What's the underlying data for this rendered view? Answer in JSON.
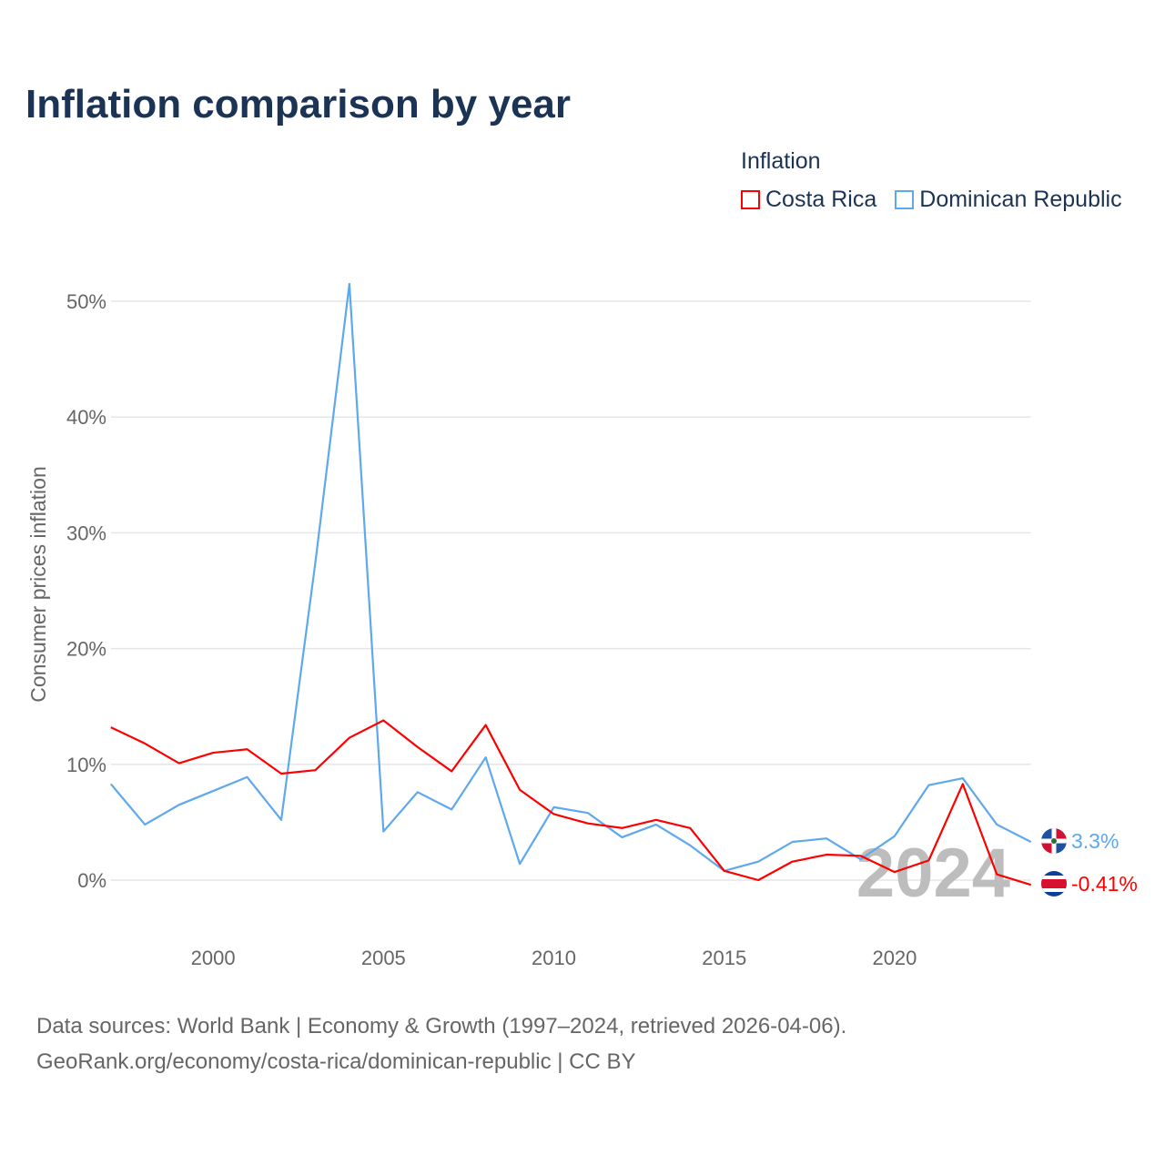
{
  "title": "Inflation comparison by year",
  "legend": {
    "title": "Inflation",
    "items": [
      {
        "label": "Costa Rica",
        "color": "#ff0000"
      },
      {
        "label": "Dominican Republic",
        "color": "#5ea8ee"
      }
    ]
  },
  "source": {
    "line1": "Data sources: World Bank | Economy & Growth (1997–2024, retrieved 2026-04-06).",
    "line2": "GeoRank.org/economy/costa-rica/dominican-republic | CC BY"
  },
  "chart_data": {
    "type": "line",
    "title": "Inflation comparison by year",
    "ylabel": "Consumer prices inflation",
    "xlabel": "",
    "xlim": [
      1997,
      2024
    ],
    "ylim": [
      -6,
      52
    ],
    "x_ticks": [
      2000,
      2005,
      2010,
      2015,
      2020
    ],
    "y_ticks": [
      0,
      10,
      20,
      30,
      40,
      50
    ],
    "y_tick_labels": [
      "0%",
      "10%",
      "20%",
      "30%",
      "40%",
      "50%"
    ],
    "grid": true,
    "year_watermark": "2024",
    "x": [
      1997,
      1998,
      1999,
      2000,
      2001,
      2002,
      2003,
      2004,
      2005,
      2006,
      2007,
      2008,
      2009,
      2010,
      2011,
      2012,
      2013,
      2014,
      2015,
      2016,
      2017,
      2018,
      2019,
      2020,
      2021,
      2022,
      2023,
      2024
    ],
    "series": [
      {
        "name": "Costa Rica",
        "color": "#ff0000",
        "end_label": "-0.41%",
        "values": [
          13.2,
          11.8,
          10.1,
          11.0,
          11.3,
          9.2,
          9.5,
          12.3,
          13.8,
          11.5,
          9.4,
          13.4,
          7.8,
          5.7,
          4.9,
          4.5,
          5.2,
          4.5,
          0.8,
          0.0,
          1.6,
          2.2,
          2.1,
          0.7,
          1.7,
          8.3,
          0.5,
          -0.41
        ]
      },
      {
        "name": "Dominican Republic",
        "color": "#5ea8ee",
        "end_label": "3.3%",
        "values": [
          8.3,
          4.8,
          6.5,
          7.7,
          8.9,
          5.2,
          27.4,
          51.5,
          4.2,
          7.6,
          6.1,
          10.6,
          1.4,
          6.3,
          5.8,
          3.7,
          4.8,
          3.0,
          0.8,
          1.6,
          3.3,
          3.6,
          1.8,
          3.8,
          8.2,
          8.8,
          4.8,
          3.3
        ]
      }
    ]
  }
}
